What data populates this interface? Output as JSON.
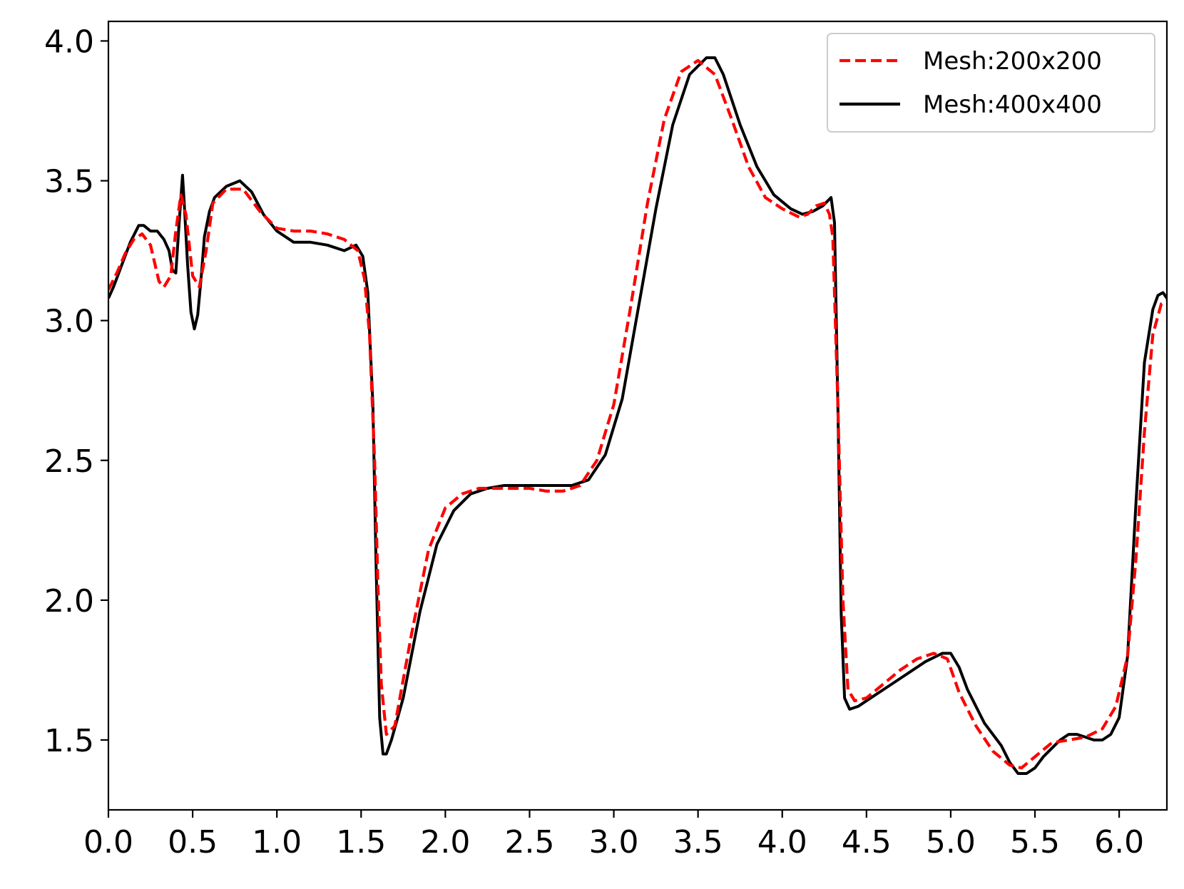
{
  "chart_data": {
    "type": "line",
    "title": "",
    "xlabel": "",
    "ylabel": "",
    "xlim": [
      0,
      6.2832
    ],
    "ylim": [
      1.25,
      4.07
    ],
    "xticks": [
      0.0,
      0.5,
      1.0,
      1.5,
      2.0,
      2.5,
      3.0,
      3.5,
      4.0,
      4.5,
      5.0,
      5.5,
      6.0
    ],
    "xtick_labels": [
      "0.0",
      "0.5",
      "1.0",
      "1.5",
      "2.0",
      "2.5",
      "3.0",
      "3.5",
      "4.0",
      "4.5",
      "5.0",
      "5.5",
      "6.0"
    ],
    "yticks": [
      1.5,
      2.0,
      2.5,
      3.0,
      3.5,
      4.0
    ],
    "ytick_labels": [
      "1.5",
      "2.0",
      "2.5",
      "3.0",
      "3.5",
      "4.0"
    ],
    "grid": false,
    "legend_position": "top-right",
    "series": [
      {
        "name": "Mesh:200x200",
        "color": "#ff0000",
        "style": "dashed",
        "x": [
          0.0,
          0.05,
          0.1,
          0.15,
          0.2,
          0.25,
          0.3,
          0.33,
          0.37,
          0.4,
          0.43,
          0.46,
          0.5,
          0.54,
          0.58,
          0.62,
          0.7,
          0.8,
          0.9,
          1.0,
          1.1,
          1.2,
          1.3,
          1.4,
          1.48,
          1.52,
          1.55,
          1.58,
          1.6,
          1.62,
          1.65,
          1.7,
          1.8,
          1.9,
          2.0,
          2.1,
          2.2,
          2.3,
          2.4,
          2.5,
          2.6,
          2.7,
          2.8,
          2.9,
          3.0,
          3.1,
          3.2,
          3.3,
          3.4,
          3.5,
          3.6,
          3.7,
          3.8,
          3.9,
          4.0,
          4.1,
          4.15,
          4.2,
          4.25,
          4.28,
          4.3,
          4.33,
          4.36,
          4.39,
          4.43,
          4.5,
          4.6,
          4.7,
          4.8,
          4.9,
          4.98,
          5.05,
          5.15,
          5.25,
          5.35,
          5.42,
          5.5,
          5.6,
          5.7,
          5.8,
          5.9,
          5.98,
          6.05,
          6.1,
          6.15,
          6.2,
          6.25,
          6.2832
        ],
        "y": [
          3.11,
          3.17,
          3.24,
          3.29,
          3.31,
          3.27,
          3.14,
          3.12,
          3.16,
          3.32,
          3.45,
          3.38,
          3.16,
          3.12,
          3.25,
          3.42,
          3.47,
          3.47,
          3.39,
          3.33,
          3.32,
          3.32,
          3.31,
          3.29,
          3.25,
          3.15,
          2.95,
          2.5,
          2.05,
          1.7,
          1.52,
          1.55,
          1.88,
          2.18,
          2.33,
          2.38,
          2.4,
          2.4,
          2.4,
          2.4,
          2.39,
          2.39,
          2.41,
          2.5,
          2.7,
          3.05,
          3.42,
          3.72,
          3.89,
          3.93,
          3.88,
          3.72,
          3.55,
          3.44,
          3.4,
          3.37,
          3.38,
          3.41,
          3.42,
          3.38,
          3.3,
          2.7,
          2.0,
          1.68,
          1.64,
          1.65,
          1.7,
          1.75,
          1.79,
          1.81,
          1.79,
          1.67,
          1.55,
          1.46,
          1.41,
          1.4,
          1.44,
          1.49,
          1.5,
          1.51,
          1.54,
          1.62,
          1.8,
          2.15,
          2.6,
          2.95,
          3.06,
          3.07
        ]
      },
      {
        "name": "Mesh:400x400",
        "color": "#000000",
        "style": "solid",
        "x": [
          0.0,
          0.03,
          0.08,
          0.13,
          0.18,
          0.21,
          0.25,
          0.29,
          0.33,
          0.36,
          0.38,
          0.4,
          0.42,
          0.44,
          0.45,
          0.47,
          0.49,
          0.51,
          0.53,
          0.55,
          0.57,
          0.6,
          0.63,
          0.7,
          0.78,
          0.85,
          0.92,
          1.0,
          1.1,
          1.2,
          1.3,
          1.4,
          1.47,
          1.51,
          1.54,
          1.57,
          1.59,
          1.61,
          1.63,
          1.65,
          1.68,
          1.75,
          1.85,
          1.95,
          2.05,
          2.15,
          2.25,
          2.35,
          2.45,
          2.55,
          2.65,
          2.75,
          2.85,
          2.95,
          3.05,
          3.15,
          3.25,
          3.35,
          3.45,
          3.55,
          3.6,
          3.65,
          3.75,
          3.85,
          3.95,
          4.05,
          4.12,
          4.18,
          4.24,
          4.29,
          4.31,
          4.33,
          4.35,
          4.37,
          4.4,
          4.45,
          4.55,
          4.65,
          4.75,
          4.85,
          4.95,
          5.0,
          5.05,
          5.1,
          5.2,
          5.3,
          5.35,
          5.4,
          5.45,
          5.5,
          5.55,
          5.6,
          5.65,
          5.7,
          5.75,
          5.8,
          5.85,
          5.9,
          5.95,
          6.0,
          6.05,
          6.1,
          6.15,
          6.2,
          6.23,
          6.26,
          6.2832
        ],
        "y": [
          3.08,
          3.12,
          3.2,
          3.28,
          3.34,
          3.34,
          3.32,
          3.32,
          3.29,
          3.25,
          3.18,
          3.17,
          3.35,
          3.52,
          3.42,
          3.2,
          3.03,
          2.97,
          3.02,
          3.15,
          3.3,
          3.39,
          3.44,
          3.48,
          3.5,
          3.46,
          3.38,
          3.32,
          3.28,
          3.28,
          3.27,
          3.25,
          3.27,
          3.23,
          3.1,
          2.7,
          2.1,
          1.58,
          1.45,
          1.45,
          1.5,
          1.65,
          1.96,
          2.2,
          2.32,
          2.38,
          2.4,
          2.41,
          2.41,
          2.41,
          2.41,
          2.41,
          2.43,
          2.52,
          2.72,
          3.06,
          3.4,
          3.7,
          3.88,
          3.94,
          3.94,
          3.88,
          3.7,
          3.55,
          3.45,
          3.4,
          3.38,
          3.39,
          3.41,
          3.44,
          3.35,
          2.7,
          1.95,
          1.65,
          1.61,
          1.62,
          1.66,
          1.7,
          1.74,
          1.78,
          1.81,
          1.81,
          1.76,
          1.68,
          1.56,
          1.48,
          1.42,
          1.38,
          1.38,
          1.4,
          1.44,
          1.47,
          1.5,
          1.52,
          1.52,
          1.51,
          1.5,
          1.5,
          1.52,
          1.58,
          1.8,
          2.35,
          2.85,
          3.04,
          3.09,
          3.1,
          3.08
        ]
      }
    ]
  }
}
